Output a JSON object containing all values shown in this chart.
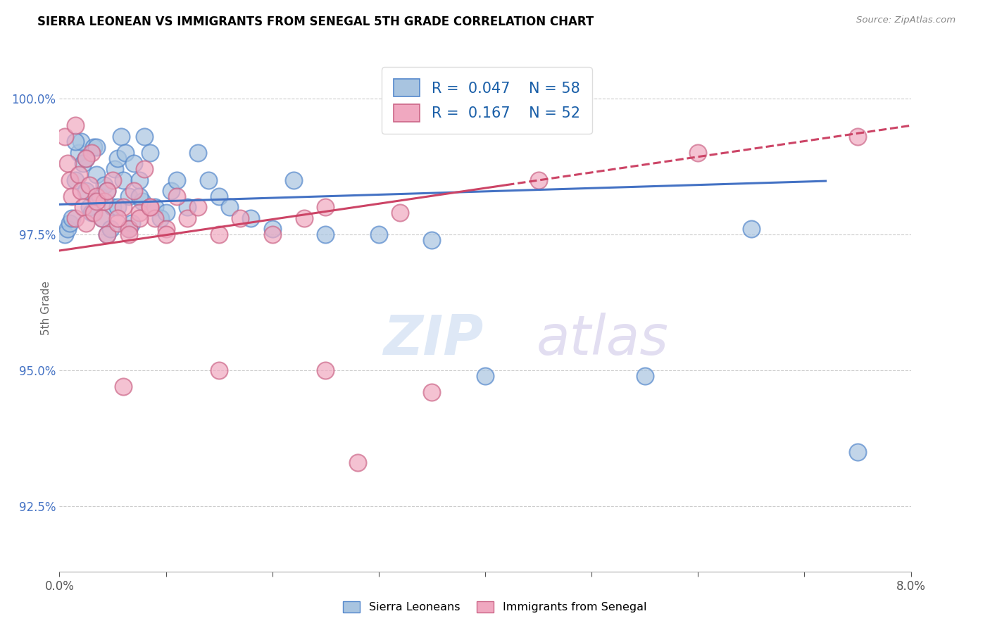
{
  "title": "SIERRA LEONEAN VS IMMIGRANTS FROM SENEGAL 5TH GRADE CORRELATION CHART",
  "source": "Source: ZipAtlas.com",
  "ylabel": "5th Grade",
  "y_ticks": [
    92.5,
    95.0,
    97.5,
    100.0
  ],
  "x_min": 0.0,
  "x_max": 8.0,
  "y_min": 91.3,
  "y_max": 101.0,
  "blue_color": "#a8c4e0",
  "pink_color": "#f0a8c0",
  "blue_edge_color": "#5588cc",
  "pink_edge_color": "#cc6688",
  "blue_line_color": "#4472c4",
  "pink_line_color": "#cc4466",
  "blue_trend_x0": 0.0,
  "blue_trend_y0": 98.05,
  "blue_trend_x1": 7.2,
  "blue_trend_y1": 98.48,
  "pink_trend_x0": 0.0,
  "pink_trend_y0": 97.2,
  "pink_trend_x1": 8.0,
  "pink_trend_y1": 99.5,
  "pink_solid_end": 4.2,
  "sierra_x": [
    0.05,
    0.08,
    0.1,
    0.12,
    0.15,
    0.18,
    0.2,
    0.22,
    0.25,
    0.28,
    0.3,
    0.32,
    0.35,
    0.38,
    0.4,
    0.42,
    0.45,
    0.48,
    0.5,
    0.52,
    0.55,
    0.58,
    0.6,
    0.62,
    0.65,
    0.68,
    0.7,
    0.75,
    0.78,
    0.8,
    0.85,
    0.9,
    0.95,
    1.0,
    1.05,
    1.1,
    1.2,
    1.3,
    1.4,
    1.5,
    1.6,
    1.8,
    2.0,
    2.2,
    2.5,
    3.0,
    3.5,
    4.0,
    5.5,
    6.5,
    7.5,
    0.15,
    0.25,
    0.35,
    0.45,
    0.55,
    0.65,
    0.75
  ],
  "sierra_y": [
    97.5,
    97.6,
    97.7,
    97.8,
    98.5,
    99.0,
    99.2,
    98.8,
    98.3,
    98.0,
    97.9,
    99.1,
    98.6,
    98.2,
    97.8,
    98.4,
    97.5,
    97.6,
    98.0,
    98.7,
    98.9,
    99.3,
    98.5,
    99.0,
    98.2,
    97.7,
    98.8,
    98.5,
    98.1,
    99.3,
    99.0,
    98.0,
    97.8,
    97.9,
    98.3,
    98.5,
    98.0,
    99.0,
    98.5,
    98.2,
    98.0,
    97.8,
    97.6,
    98.5,
    97.5,
    97.5,
    97.4,
    94.9,
    94.9,
    97.6,
    93.5,
    99.2,
    98.9,
    99.1,
    98.3,
    98.0,
    97.6,
    98.2
  ],
  "senegal_x": [
    0.05,
    0.08,
    0.1,
    0.12,
    0.15,
    0.18,
    0.2,
    0.22,
    0.25,
    0.28,
    0.3,
    0.32,
    0.35,
    0.4,
    0.42,
    0.45,
    0.5,
    0.55,
    0.6,
    0.65,
    0.7,
    0.75,
    0.8,
    0.85,
    0.9,
    1.0,
    1.1,
    1.2,
    1.3,
    1.5,
    1.7,
    2.0,
    2.3,
    2.5,
    0.15,
    0.25,
    0.35,
    0.45,
    0.55,
    0.65,
    0.75,
    0.85,
    1.0,
    1.5,
    2.5,
    3.5,
    4.5,
    6.0,
    7.5,
    3.2,
    2.8,
    0.6
  ],
  "senegal_y": [
    99.3,
    98.8,
    98.5,
    98.2,
    97.8,
    98.6,
    98.3,
    98.0,
    97.7,
    98.4,
    99.0,
    97.9,
    98.2,
    97.8,
    98.1,
    97.5,
    98.5,
    97.7,
    98.0,
    97.6,
    98.3,
    97.9,
    98.7,
    98.0,
    97.8,
    97.6,
    98.2,
    97.8,
    98.0,
    97.5,
    97.8,
    97.5,
    97.8,
    98.0,
    99.5,
    98.9,
    98.1,
    98.3,
    97.8,
    97.5,
    97.8,
    98.0,
    97.5,
    95.0,
    95.0,
    94.6,
    98.5,
    99.0,
    99.3,
    97.9,
    93.3,
    94.7
  ]
}
